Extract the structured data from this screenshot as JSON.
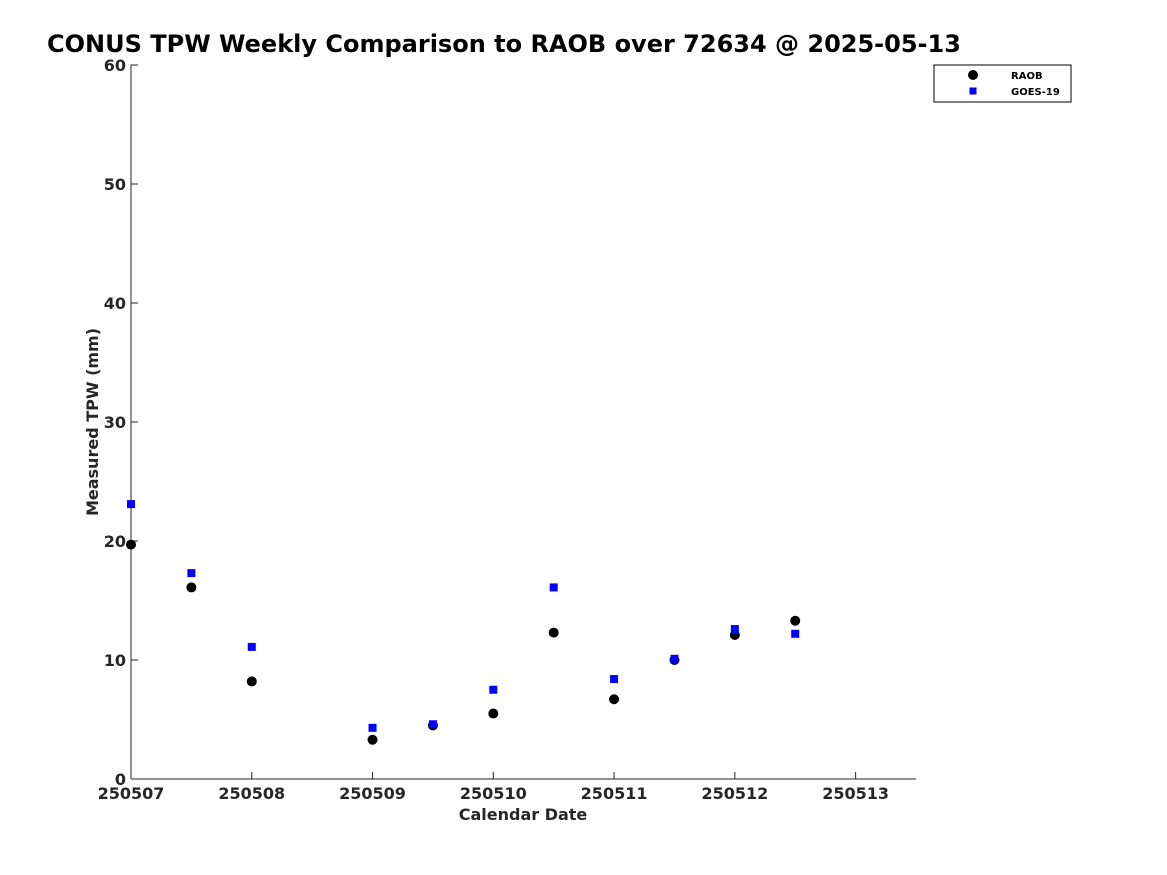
{
  "chart_data": {
    "type": "scatter",
    "title": "CONUS TPW Weekly Comparison to RAOB over 72634 @ 2025-05-13",
    "xlabel": "Calendar Date",
    "ylabel": "Measured TPW (mm)",
    "xlim": [
      0,
      6.5
    ],
    "ylim": [
      0,
      60
    ],
    "x_ticks": [
      0,
      1,
      2,
      3,
      4,
      5,
      6
    ],
    "x_tick_labels": [
      "250507",
      "250508",
      "250509",
      "250510",
      "250511",
      "250512",
      "250513"
    ],
    "y_ticks": [
      0,
      10,
      20,
      30,
      40,
      50,
      60
    ],
    "y_tick_labels": [
      "0",
      "10",
      "20",
      "30",
      "40",
      "50",
      "60"
    ],
    "grid": false,
    "legend_position": "top-right (outside)",
    "series": [
      {
        "name": "RAOB",
        "marker": "circle",
        "color": "#000000",
        "x": [
          0,
          0.5,
          1,
          2,
          2.5,
          3,
          3.5,
          4,
          4.5,
          5,
          5.5
        ],
        "values": [
          19.7,
          16.1,
          8.2,
          3.3,
          4.5,
          5.5,
          12.3,
          6.7,
          10.0,
          12.1,
          13.3
        ]
      },
      {
        "name": "GOES-19",
        "marker": "square",
        "color": "#0000ff",
        "x": [
          0,
          0.5,
          1,
          2,
          2.5,
          3,
          3.5,
          4,
          4.5,
          5,
          5.5
        ],
        "values": [
          23.1,
          17.3,
          11.1,
          4.3,
          4.6,
          7.5,
          16.1,
          8.4,
          10.1,
          12.6,
          12.2
        ]
      }
    ]
  }
}
